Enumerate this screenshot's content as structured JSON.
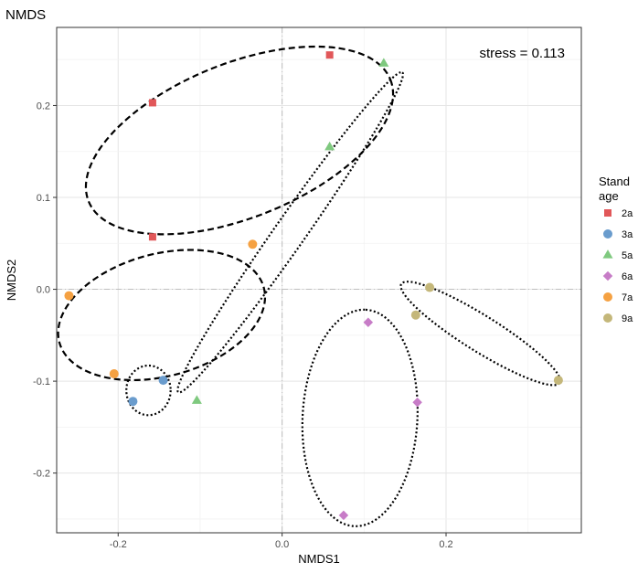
{
  "chart_data": {
    "type": "scatter",
    "title": "NMDS",
    "xlabel": "NMDS1",
    "ylabel": "NMDS2",
    "xlim": [
      -0.275,
      0.365
    ],
    "ylim": [
      -0.265,
      0.285
    ],
    "xticks": [
      -0.2,
      0.0,
      0.2
    ],
    "xtick_labels": [
      "-0.2",
      "0.0",
      "0.2"
    ],
    "yticks": [
      -0.2,
      -0.1,
      0.0,
      0.1,
      0.2
    ],
    "ytick_labels": [
      "-0.2",
      "-0.1",
      "0.0",
      "0.1",
      "0.2"
    ],
    "grid": true,
    "reference_lines": {
      "x": 0,
      "y": 0
    },
    "annotation": "stress = 0.113",
    "legend": {
      "title_lines": [
        "Stand",
        "age"
      ],
      "position": "right"
    },
    "series": [
      {
        "name": "2a",
        "color": "#e15759",
        "marker": "square",
        "points": [
          [
            0.058,
            0.255
          ],
          [
            -0.158,
            0.203
          ],
          [
            -0.158,
            0.057
          ]
        ]
      },
      {
        "name": "3a",
        "color": "#6a9ccd",
        "marker": "circle",
        "points": [
          [
            -0.182,
            -0.122
          ],
          [
            -0.145,
            -0.099
          ]
        ]
      },
      {
        "name": "5a",
        "color": "#7fc97f",
        "marker": "triangle",
        "points": [
          [
            0.124,
            0.246
          ],
          [
            0.058,
            0.155
          ],
          [
            -0.104,
            -0.121
          ]
        ]
      },
      {
        "name": "6a",
        "color": "#c77cc7",
        "marker": "diamond",
        "points": [
          [
            0.105,
            -0.036
          ],
          [
            0.165,
            -0.123
          ],
          [
            0.075,
            -0.246
          ]
        ]
      },
      {
        "name": "7a",
        "color": "#f5a142",
        "marker": "circle",
        "points": [
          [
            -0.036,
            0.049
          ],
          [
            -0.26,
            -0.007
          ],
          [
            -0.205,
            -0.092
          ]
        ]
      },
      {
        "name": "9a",
        "color": "#c4b77a",
        "marker": "circle",
        "points": [
          [
            0.18,
            0.002
          ],
          [
            0.163,
            -0.028
          ],
          [
            0.337,
            -0.099
          ]
        ]
      }
    ],
    "ellipses": [
      {
        "group": "2a",
        "style": "dashed",
        "cx": -0.052,
        "cy": 0.162,
        "rx": 0.195,
        "ry": 0.085,
        "angle": 22
      },
      {
        "group": "7a",
        "style": "dashed",
        "cx": -0.147,
        "cy": -0.028,
        "rx": 0.128,
        "ry": 0.067,
        "angle": 15
      },
      {
        "group": "3a",
        "style": "dotted",
        "cx": -0.163,
        "cy": -0.11,
        "rx": 0.027,
        "ry": 0.027,
        "angle": 0
      },
      {
        "group": "5a",
        "style": "dotted",
        "cx": 0.01,
        "cy": 0.062,
        "rx": 0.22,
        "ry": 0.018,
        "angle": 55
      },
      {
        "group": "6a",
        "style": "dotted",
        "cx": 0.095,
        "cy": -0.14,
        "rx": 0.118,
        "ry": 0.07,
        "angle": 87
      },
      {
        "group": "9a",
        "style": "dotted",
        "cx": 0.242,
        "cy": -0.048,
        "rx": 0.11,
        "ry": 0.02,
        "angle": -32
      }
    ]
  }
}
